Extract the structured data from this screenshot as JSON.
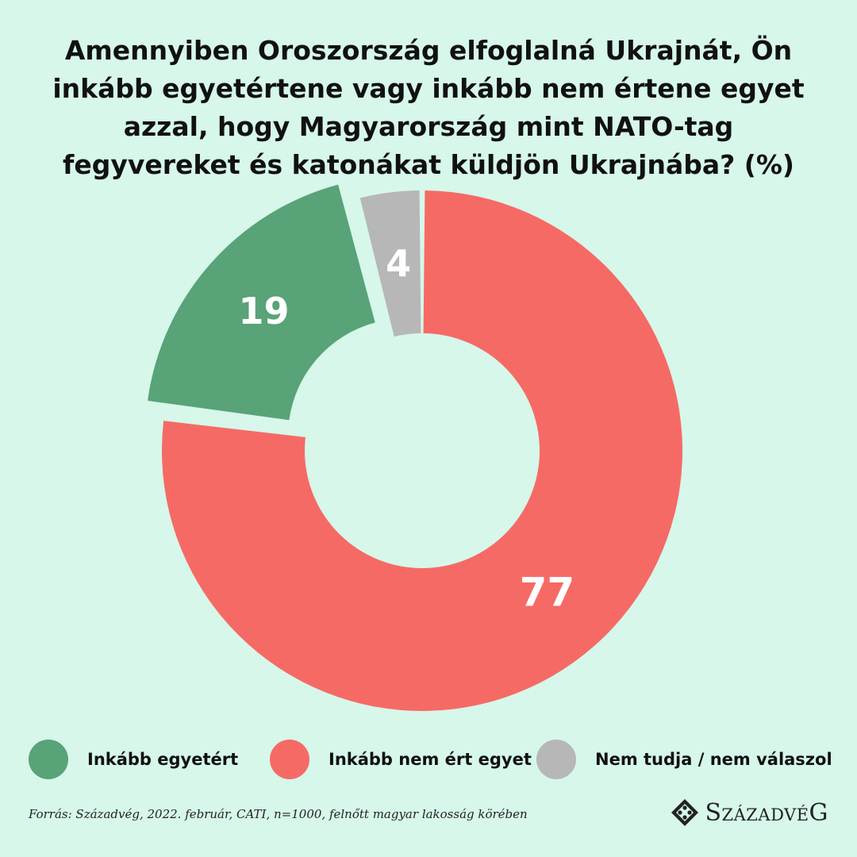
{
  "title": "Amennyiben Oroszország elfoglalná Ukrajnát, Ön inkább egyetértene vagy inkább nem értene egyet azzal, hogy Magyarország mint NATO-tag fegyvereket és katonákat küldjön Ukrajnába? (%)",
  "chart_data": {
    "type": "pie",
    "variant": "donut",
    "categories": [
      "Inkább nem ért egyet",
      "Inkább egyetért",
      "Nem tudja / nem válaszol"
    ],
    "values": [
      77,
      19,
      4
    ],
    "colors": [
      "#f66a65",
      "#58a377",
      "#b7b7b7"
    ],
    "labels": [
      "77",
      "19",
      "4"
    ],
    "legend_position": "bottom"
  },
  "legend": [
    {
      "label": "Inkább egyetért",
      "color": "#58a377"
    },
    {
      "label": "Inkább nem ért egyet",
      "color": "#f66a65"
    },
    {
      "label": "Nem tudja / nem válaszol",
      "color": "#b7b7b7"
    }
  ],
  "source": "Forrás: Századvég, 2022. február, CATI, n=1000, felnőtt magyar lakosság körében",
  "brand": {
    "name": "SzázadvéG",
    "icon": "diamond-logo-icon"
  }
}
